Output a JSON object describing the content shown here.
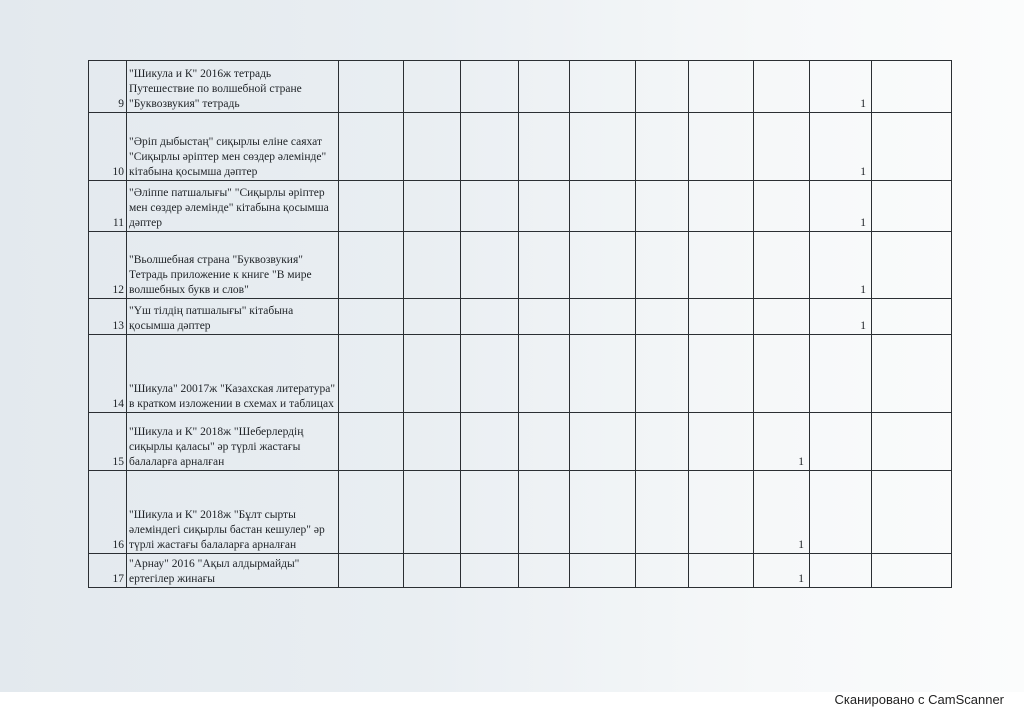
{
  "rows": [
    {
      "num": "9",
      "text": "\"Шикула и К\" 2016ж тетрадь Путешествие по волшебной стране \"Буквозвукия\" тетрадь",
      "values": [
        "",
        "",
        "",
        "",
        "",
        "",
        "",
        "",
        "1",
        ""
      ]
    },
    {
      "num": "10",
      "text": "\"Әріп дыбыстаң\" сиқырлы еліне саяхат \"Сиқырлы әріптер мен сөздер әлемінде\" кітабына қосымша дәптер",
      "values": [
        "",
        "",
        "",
        "",
        "",
        "",
        "",
        "",
        "1",
        ""
      ]
    },
    {
      "num": "11",
      "text": "\"Әліппе патшалығы\"  \"Сиқырлы әріптер мен сөздер әлемінде\" кітабына қосымша дәптер",
      "values": [
        "",
        "",
        "",
        "",
        "",
        "",
        "",
        "",
        "1",
        ""
      ]
    },
    {
      "num": "12",
      "text": "\"Вьолшебная страна \"Буквозвукия\" Тетрадь приложение к книге \"В мире волшебных букв и слов\"",
      "values": [
        "",
        "",
        "",
        "",
        "",
        "",
        "",
        "",
        "1",
        ""
      ]
    },
    {
      "num": "13",
      "text": "\"Үш тілдің патшалығы\" кітабына қосымша дәптер",
      "values": [
        "",
        "",
        "",
        "",
        "",
        "",
        "",
        "",
        "1",
        ""
      ]
    },
    {
      "num": "14",
      "text": "\"Шикула\" 20017ж \"Казахская литература\" в кратком изложении в схемах и таблицах",
      "values": [
        "",
        "",
        "",
        "",
        "",
        "",
        "",
        "",
        "",
        ""
      ]
    },
    {
      "num": "15",
      "text": "\"Шикула и К\" 2018ж \"Шеберлердің сиқырлы қаласы\" әр түрлі жастағы балаларға арналған",
      "values": [
        "",
        "",
        "",
        "",
        "",
        "",
        "",
        "1",
        "",
        ""
      ]
    },
    {
      "num": "16",
      "text": "\"Шикула и К\" 2018ж \"Бұлт сырты әлеміндегі сиқырлы бастан кешулер\" әр түрлі жастағы балаларға арналған",
      "values": [
        "",
        "",
        "",
        "",
        "",
        "",
        "",
        "1",
        "",
        ""
      ]
    },
    {
      "num": "17",
      "text": "\"Арнау\" 2016   \"Ақыл алдырмайды\" ертегілер жинағы",
      "values": [
        "",
        "",
        "",
        "",
        "",
        "",
        "",
        "1",
        "",
        ""
      ]
    }
  ],
  "footer": "Сканировано с CamScanner"
}
